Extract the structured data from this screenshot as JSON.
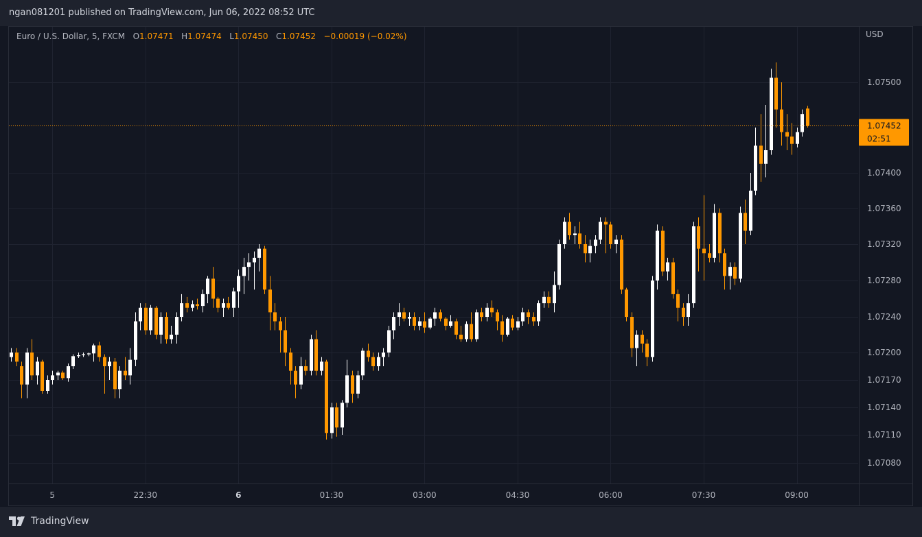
{
  "header": {
    "published_text": "ngan081201 published on TradingView.com, Jun 06, 2022 08:52 UTC"
  },
  "legend": {
    "symbol": "Euro / U.S. Dollar, 5, FXCM",
    "o_label": "O",
    "o_value": "1.07471",
    "h_label": "H",
    "h_value": "1.07474",
    "l_label": "L",
    "l_value": "1.07450",
    "c_label": "C",
    "c_value": "1.07452",
    "change": "−0.00019 (−0.02%)"
  },
  "axis": {
    "currency": "USD"
  },
  "price_label": {
    "price": "1.07452",
    "countdown": "02:51"
  },
  "footer": {
    "brand": "TradingView"
  },
  "colors": {
    "background": "#131722",
    "up": "#ffffff",
    "down": "#ff9800",
    "grid": "#1f2330",
    "price_line": "#ff9800"
  },
  "chart_data": {
    "type": "candlestick",
    "symbol": "EURUSD",
    "interval": "5",
    "y_ticks": [
      1.0708,
      1.0711,
      1.0714,
      1.0717,
      1.072,
      1.0724,
      1.0728,
      1.0732,
      1.0736,
      1.074,
      1.075
    ],
    "y_tick_labels": [
      "1.07080",
      "1.07110",
      "1.07140",
      "1.07170",
      "1.07200",
      "1.07240",
      "1.07280",
      "1.07320",
      "1.07360",
      "1.07400",
      "1.07500"
    ],
    "x_ticks": [
      {
        "label": "5",
        "index": 8,
        "bold": false
      },
      {
        "label": "22:30",
        "index": 26,
        "bold": false
      },
      {
        "label": "6",
        "index": 44,
        "bold": true
      },
      {
        "label": "01:30",
        "index": 62,
        "bold": false
      },
      {
        "label": "03:00",
        "index": 80,
        "bold": false
      },
      {
        "label": "04:30",
        "index": 98,
        "bold": false
      },
      {
        "label": "06:00",
        "index": 116,
        "bold": false
      },
      {
        "label": "07:30",
        "index": 134,
        "bold": false
      },
      {
        "label": "09:00",
        "index": 152,
        "bold": false
      }
    ],
    "current_price": 1.07452,
    "candles": [
      [
        1.07195,
        1.07205,
        1.0719,
        1.072
      ],
      [
        1.072,
        1.07205,
        1.07185,
        1.0719
      ],
      [
        1.07185,
        1.0719,
        1.0715,
        1.07165
      ],
      [
        1.07165,
        1.07205,
        1.0715,
        1.072
      ],
      [
        1.072,
        1.07215,
        1.0717,
        1.07175
      ],
      [
        1.07175,
        1.07195,
        1.07165,
        1.0719
      ],
      [
        1.0719,
        1.07192,
        1.07155,
        1.07158
      ],
      [
        1.07158,
        1.07175,
        1.07155,
        1.0717
      ],
      [
        1.0717,
        1.0718,
        1.07165,
        1.07175
      ],
      [
        1.07175,
        1.0718,
        1.0717,
        1.07178
      ],
      [
        1.07178,
        1.0718,
        1.0717,
        1.07172
      ],
      [
        1.07172,
        1.07188,
        1.07168,
        1.07185
      ],
      [
        1.07185,
        1.07198,
        1.07182,
        1.07196
      ],
      [
        1.07196,
        1.072,
        1.07194,
        1.07197
      ],
      [
        1.07197,
        1.072,
        1.07195,
        1.07198
      ],
      [
        1.07198,
        1.072,
        1.07196,
        1.07199
      ],
      [
        1.07199,
        1.0721,
        1.0719,
        1.07208
      ],
      [
        1.07208,
        1.07212,
        1.0719,
        1.07195
      ],
      [
        1.07195,
        1.07198,
        1.07155,
        1.07185
      ],
      [
        1.07185,
        1.07195,
        1.0717,
        1.0719
      ],
      [
        1.0719,
        1.07194,
        1.0715,
        1.0716
      ],
      [
        1.0716,
        1.07185,
        1.0715,
        1.0718
      ],
      [
        1.0718,
        1.07195,
        1.0717,
        1.07175
      ],
      [
        1.07175,
        1.07205,
        1.07165,
        1.07192
      ],
      [
        1.07192,
        1.07245,
        1.07185,
        1.07235
      ],
      [
        1.07235,
        1.07255,
        1.07225,
        1.0725
      ],
      [
        1.0725,
        1.07255,
        1.0722,
        1.07225
      ],
      [
        1.07225,
        1.07253,
        1.0722,
        1.0725
      ],
      [
        1.0725,
        1.07252,
        1.07215,
        1.0722
      ],
      [
        1.0722,
        1.07245,
        1.0721,
        1.0724
      ],
      [
        1.0724,
        1.07245,
        1.0721,
        1.07215
      ],
      [
        1.07215,
        1.0723,
        1.0721,
        1.0722
      ],
      [
        1.0722,
        1.07245,
        1.0721,
        1.0724
      ],
      [
        1.0724,
        1.07265,
        1.07235,
        1.07255
      ],
      [
        1.07255,
        1.07262,
        1.07245,
        1.0725
      ],
      [
        1.0725,
        1.07258,
        1.07246,
        1.07254
      ],
      [
        1.07254,
        1.0726,
        1.07248,
        1.07252
      ],
      [
        1.07252,
        1.0727,
        1.07245,
        1.07265
      ],
      [
        1.07265,
        1.07285,
        1.07255,
        1.07282
      ],
      [
        1.07282,
        1.07295,
        1.0725,
        1.0726
      ],
      [
        1.0726,
        1.07262,
        1.07245,
        1.0725
      ],
      [
        1.0725,
        1.0726,
        1.0724,
        1.07255
      ],
      [
        1.07255,
        1.07262,
        1.07248,
        1.0725
      ],
      [
        1.0725,
        1.07272,
        1.0724,
        1.07268
      ],
      [
        1.07268,
        1.07292,
        1.0725,
        1.07285
      ],
      [
        1.07285,
        1.07305,
        1.07265,
        1.07295
      ],
      [
        1.07295,
        1.0731,
        1.0728,
        1.073
      ],
      [
        1.073,
        1.07312,
        1.0727,
        1.07305
      ],
      [
        1.07305,
        1.0732,
        1.0729,
        1.07315
      ],
      [
        1.07315,
        1.07318,
        1.07265,
        1.0727
      ],
      [
        1.0727,
        1.07285,
        1.07225,
        1.07245
      ],
      [
        1.07245,
        1.07255,
        1.07225,
        1.07235
      ],
      [
        1.07235,
        1.0724,
        1.072,
        1.07225
      ],
      [
        1.07225,
        1.0724,
        1.07185,
        1.072
      ],
      [
        1.072,
        1.07205,
        1.07165,
        1.0718
      ],
      [
        1.0718,
        1.07185,
        1.0715,
        1.07165
      ],
      [
        1.07165,
        1.07195,
        1.0716,
        1.07185
      ],
      [
        1.07185,
        1.07192,
        1.07175,
        1.0718
      ],
      [
        1.0718,
        1.0722,
        1.07175,
        1.07215
      ],
      [
        1.07215,
        1.07225,
        1.07175,
        1.0718
      ],
      [
        1.0718,
        1.07195,
        1.07175,
        1.0719
      ],
      [
        1.0719,
        1.07192,
        1.07105,
        1.07112
      ],
      [
        1.07112,
        1.07145,
        1.07106,
        1.0714
      ],
      [
        1.0714,
        1.07145,
        1.07108,
        1.07118
      ],
      [
        1.07118,
        1.07148,
        1.0711,
        1.07145
      ],
      [
        1.07145,
        1.07192,
        1.0714,
        1.07175
      ],
      [
        1.07175,
        1.0718,
        1.07145,
        1.07155
      ],
      [
        1.07155,
        1.0718,
        1.0715,
        1.07175
      ],
      [
        1.07175,
        1.07205,
        1.0717,
        1.07202
      ],
      [
        1.07202,
        1.0721,
        1.0719,
        1.07195
      ],
      [
        1.07195,
        1.072,
        1.0718,
        1.07185
      ],
      [
        1.07185,
        1.072,
        1.0718,
        1.07195
      ],
      [
        1.07195,
        1.07205,
        1.07185,
        1.072
      ],
      [
        1.072,
        1.0723,
        1.07195,
        1.07225
      ],
      [
        1.07225,
        1.07245,
        1.07215,
        1.0724
      ],
      [
        1.0724,
        1.07255,
        1.0723,
        1.07245
      ],
      [
        1.07245,
        1.0725,
        1.07235,
        1.07238
      ],
      [
        1.07238,
        1.07245,
        1.0723,
        1.0724
      ],
      [
        1.0724,
        1.07245,
        1.07225,
        1.0723
      ],
      [
        1.0723,
        1.0724,
        1.07225,
        1.07235
      ],
      [
        1.07235,
        1.07245,
        1.07222,
        1.07228
      ],
      [
        1.07228,
        1.0724,
        1.07226,
        1.07238
      ],
      [
        1.07238,
        1.0725,
        1.0723,
        1.07245
      ],
      [
        1.07245,
        1.07248,
        1.07235,
        1.07238
      ],
      [
        1.07238,
        1.0724,
        1.07225,
        1.0723
      ],
      [
        1.0723,
        1.07242,
        1.07228,
        1.07235
      ],
      [
        1.07235,
        1.07238,
        1.07215,
        1.0722
      ],
      [
        1.0722,
        1.0723,
        1.07212,
        1.07215
      ],
      [
        1.07215,
        1.07235,
        1.07212,
        1.07232
      ],
      [
        1.07232,
        1.07245,
        1.07212,
        1.07215
      ],
      [
        1.07215,
        1.07248,
        1.07212,
        1.07245
      ],
      [
        1.07245,
        1.0725,
        1.07235,
        1.0724
      ],
      [
        1.0724,
        1.07255,
        1.07235,
        1.0725
      ],
      [
        1.0725,
        1.07258,
        1.0724,
        1.07245
      ],
      [
        1.07245,
        1.07248,
        1.07225,
        1.07235
      ],
      [
        1.07235,
        1.07242,
        1.07212,
        1.0722
      ],
      [
        1.0722,
        1.0724,
        1.07218,
        1.07238
      ],
      [
        1.07238,
        1.07242,
        1.07225,
        1.07228
      ],
      [
        1.07228,
        1.0724,
        1.07225,
        1.07235
      ],
      [
        1.07235,
        1.0725,
        1.0723,
        1.07245
      ],
      [
        1.07245,
        1.07248,
        1.07232,
        1.0724
      ],
      [
        1.0724,
        1.07245,
        1.0723,
        1.07235
      ],
      [
        1.07235,
        1.07258,
        1.0723,
        1.07255
      ],
      [
        1.07255,
        1.07268,
        1.0725,
        1.07262
      ],
      [
        1.07262,
        1.07268,
        1.0725,
        1.07255
      ],
      [
        1.07255,
        1.0729,
        1.07245,
        1.07275
      ],
      [
        1.07275,
        1.07325,
        1.0727,
        1.0732
      ],
      [
        1.0732,
        1.0735,
        1.07315,
        1.07345
      ],
      [
        1.07345,
        1.07355,
        1.07325,
        1.0733
      ],
      [
        1.0733,
        1.0734,
        1.0732,
        1.07332
      ],
      [
        1.07332,
        1.07345,
        1.07315,
        1.0732
      ],
      [
        1.0732,
        1.0733,
        1.073,
        1.0731
      ],
      [
        1.0731,
        1.07325,
        1.073,
        1.07318
      ],
      [
        1.07318,
        1.0733,
        1.0731,
        1.07325
      ],
      [
        1.07325,
        1.0735,
        1.0732,
        1.07345
      ],
      [
        1.07345,
        1.0735,
        1.0731,
        1.07342
      ],
      [
        1.07342,
        1.07345,
        1.07315,
        1.0732
      ],
      [
        1.0732,
        1.0733,
        1.0731,
        1.07325
      ],
      [
        1.07325,
        1.0733,
        1.07265,
        1.0727
      ],
      [
        1.0727,
        1.07272,
        1.07235,
        1.0724
      ],
      [
        1.0724,
        1.07245,
        1.07195,
        1.07205
      ],
      [
        1.07205,
        1.07225,
        1.07185,
        1.0722
      ],
      [
        1.0722,
        1.07225,
        1.072,
        1.0721
      ],
      [
        1.0721,
        1.07215,
        1.07185,
        1.07195
      ],
      [
        1.07195,
        1.07285,
        1.0719,
        1.0728
      ],
      [
        1.0728,
        1.07342,
        1.0727,
        1.07335
      ],
      [
        1.07335,
        1.0734,
        1.07285,
        1.0729
      ],
      [
        1.0729,
        1.07305,
        1.0728,
        1.073
      ],
      [
        1.073,
        1.07305,
        1.0726,
        1.07265
      ],
      [
        1.07265,
        1.0727,
        1.07235,
        1.0725
      ],
      [
        1.0725,
        1.07255,
        1.0723,
        1.0724
      ],
      [
        1.0724,
        1.07265,
        1.0723,
        1.07255
      ],
      [
        1.07255,
        1.07345,
        1.0725,
        1.0734
      ],
      [
        1.0734,
        1.0735,
        1.0729,
        1.07315
      ],
      [
        1.07315,
        1.07375,
        1.0728,
        1.0731
      ],
      [
        1.0731,
        1.0732,
        1.073,
        1.07305
      ],
      [
        1.07305,
        1.07365,
        1.073,
        1.07355
      ],
      [
        1.07355,
        1.0736,
        1.073,
        1.0731
      ],
      [
        1.0731,
        1.07315,
        1.0727,
        1.07285
      ],
      [
        1.07285,
        1.073,
        1.0727,
        1.07295
      ],
      [
        1.07295,
        1.073,
        1.07275,
        1.07282
      ],
      [
        1.07282,
        1.07362,
        1.07278,
        1.07355
      ],
      [
        1.07355,
        1.0737,
        1.0732,
        1.07335
      ],
      [
        1.07335,
        1.074,
        1.0733,
        1.0738
      ],
      [
        1.0738,
        1.0745,
        1.07375,
        1.0743
      ],
      [
        1.0743,
        1.07465,
        1.0739,
        1.0741
      ],
      [
        1.0741,
        1.07475,
        1.07395,
        1.07425
      ],
      [
        1.07425,
        1.07515,
        1.0742,
        1.07505
      ],
      [
        1.07505,
        1.07522,
        1.0745,
        1.0747
      ],
      [
        1.0747,
        1.075,
        1.0743,
        1.07445
      ],
      [
        1.07445,
        1.07465,
        1.07425,
        1.0744
      ],
      [
        1.0744,
        1.07455,
        1.0742,
        1.07432
      ],
      [
        1.07432,
        1.0745,
        1.07428,
        1.07445
      ],
      [
        1.07445,
        1.0747,
        1.0744,
        1.07465
      ],
      [
        1.07471,
        1.07474,
        1.0745,
        1.07452
      ]
    ]
  }
}
